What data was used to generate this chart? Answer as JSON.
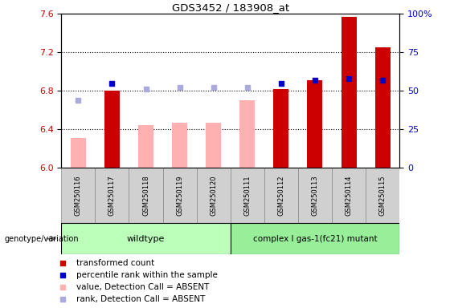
{
  "title": "GDS3452 / 183908_at",
  "samples": [
    "GSM250116",
    "GSM250117",
    "GSM250118",
    "GSM250119",
    "GSM250120",
    "GSM250111",
    "GSM250112",
    "GSM250113",
    "GSM250114",
    "GSM250115"
  ],
  "transformed_count": [
    null,
    6.805,
    null,
    null,
    null,
    null,
    6.823,
    6.908,
    7.568,
    7.253
  ],
  "percentile_rank": [
    null,
    55.0,
    null,
    null,
    null,
    null,
    55.0,
    57.0,
    58.0,
    57.0
  ],
  "value_absent": [
    6.31,
    null,
    6.44,
    6.47,
    6.47,
    6.7,
    null,
    null,
    null,
    null
  ],
  "rank_absent": [
    44.0,
    null,
    51.0,
    52.0,
    52.0,
    52.0,
    null,
    null,
    null,
    null
  ],
  "ylim_left": [
    6.0,
    7.6
  ],
  "ylim_right": [
    0,
    100
  ],
  "yticks_left": [
    6.0,
    6.4,
    6.8,
    7.2,
    7.6
  ],
  "yticks_right": [
    0,
    25,
    50,
    75,
    100
  ],
  "ytick_right_labels": [
    "0",
    "25",
    "50",
    "75",
    "100%"
  ],
  "color_red": "#cc0000",
  "color_pink": "#ffb0b0",
  "color_blue": "#0000cc",
  "color_lightblue": "#aaaadd",
  "color_bg_gray": "#d0d0d0",
  "color_wildtype": "#bbffbb",
  "color_mutant": "#99ee99",
  "wildtype_label": "wildtype",
  "mutant_label": "complex I gas-1(fc21) mutant",
  "legend_labels": [
    "transformed count",
    "percentile rank within the sample",
    "value, Detection Call = ABSENT",
    "rank, Detection Call = ABSENT"
  ],
  "genotype_label": "genotype/variation"
}
